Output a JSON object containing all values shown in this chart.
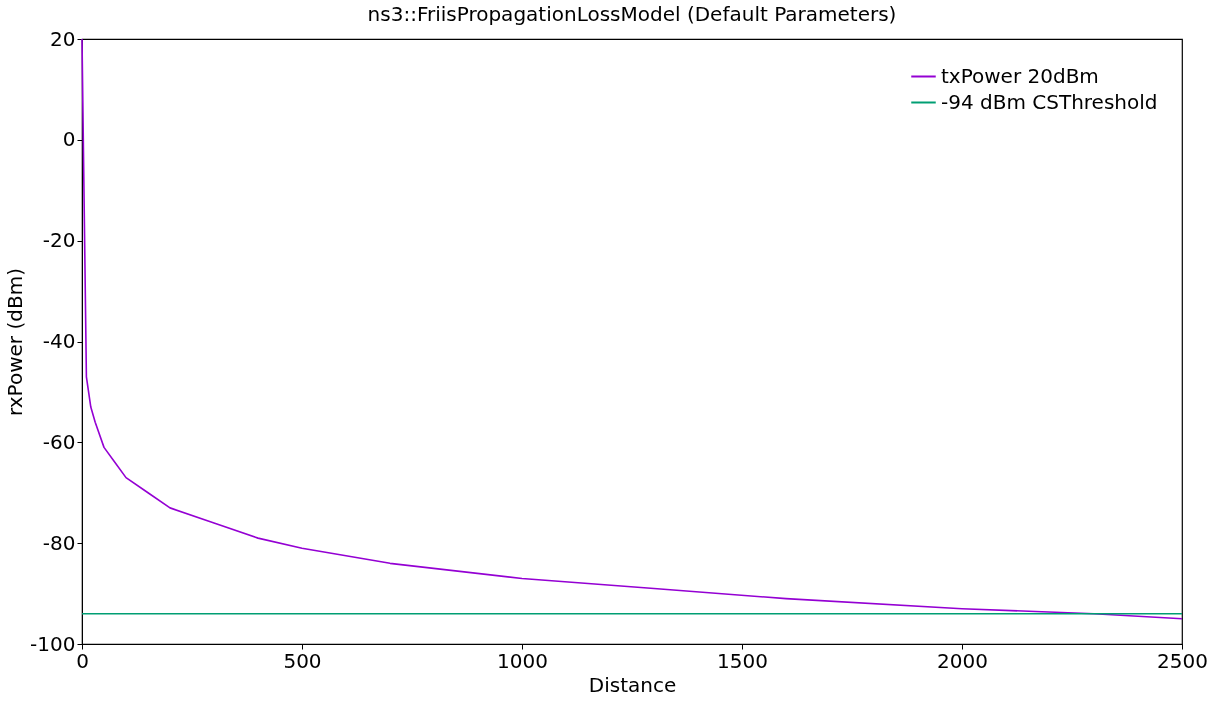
{
  "chart_data": {
    "type": "line",
    "title": "ns3::FriisPropagationLossModel (Default Parameters)",
    "xlabel": "Distance",
    "ylabel": "rxPower (dBm)",
    "series": [
      {
        "name": "txPower 20dBm",
        "color": "#9400d3",
        "x": [
          0,
          10,
          20,
          30,
          50,
          75,
          100,
          150,
          200,
          300,
          400,
          500,
          700,
          1000,
          1300,
          1600,
          2000,
          2300,
          2500
        ],
        "values": [
          20,
          -47,
          -53,
          -56,
          -61,
          -64,
          -67,
          -70,
          -73,
          -76,
          -79,
          -81,
          -84,
          -87,
          -89,
          -91,
          -93,
          -94,
          -95
        ]
      },
      {
        "name": "-94 dBm CSThreshold",
        "color": "#009e73",
        "x": [
          0,
          2500
        ],
        "values": [
          -94,
          -94
        ]
      }
    ],
    "xlim": [
      0,
      2500
    ],
    "xticks": [
      0,
      500,
      1000,
      1500,
      2000,
      2500
    ],
    "ylim": [
      -100,
      20
    ],
    "yticks": [
      -100,
      -80,
      -60,
      -40,
      -20,
      0,
      20
    ],
    "grid": false,
    "legend": "top right",
    "marker": "none",
    "line_style": "solid"
  }
}
